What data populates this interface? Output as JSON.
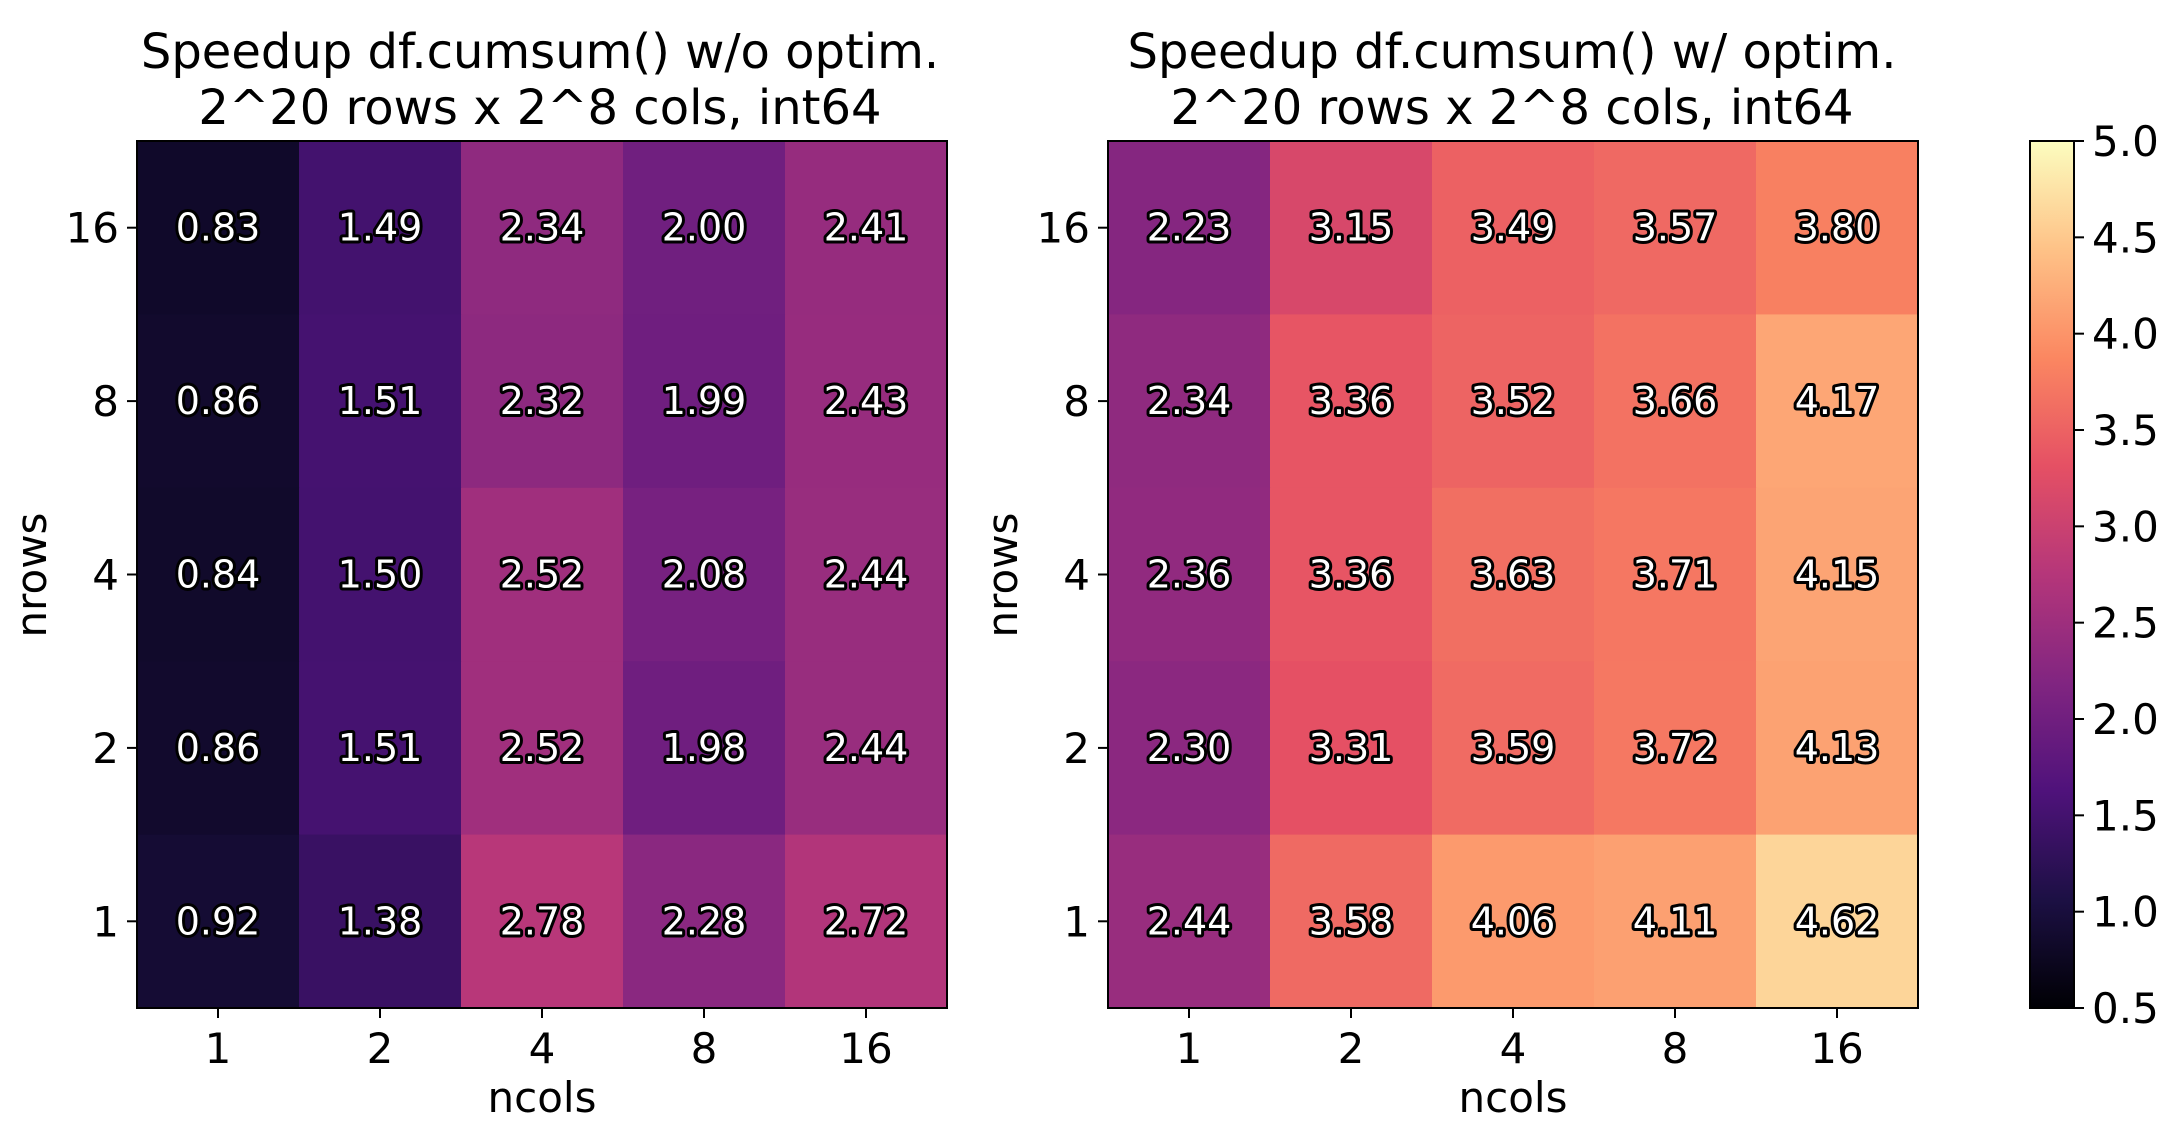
{
  "chart_data": [
    {
      "type": "heatmap",
      "title": "Speedup df.cumsum() w/o optim.",
      "subtitle": "2^20 rows x 2^8 cols, int64",
      "xlabel": "ncols",
      "ylabel": "nrows",
      "x_categories": [
        "1",
        "2",
        "4",
        "8",
        "16"
      ],
      "y_categories": [
        "16",
        "8",
        "4",
        "2",
        "1"
      ],
      "values": [
        [
          0.83,
          1.49,
          2.34,
          2.0,
          2.41
        ],
        [
          0.86,
          1.51,
          2.32,
          1.99,
          2.43
        ],
        [
          0.84,
          1.5,
          2.52,
          2.08,
          2.44
        ],
        [
          0.86,
          1.51,
          2.52,
          1.98,
          2.44
        ],
        [
          0.92,
          1.38,
          2.78,
          2.28,
          2.72
        ]
      ],
      "value_labels": [
        [
          "0.83",
          "1.49",
          "2.34",
          "2.00",
          "2.41"
        ],
        [
          "0.86",
          "1.51",
          "2.32",
          "1.99",
          "2.43"
        ],
        [
          "0.84",
          "1.50",
          "2.52",
          "2.08",
          "2.44"
        ],
        [
          "0.86",
          "1.51",
          "2.52",
          "1.98",
          "2.44"
        ],
        [
          "0.92",
          "1.38",
          "2.78",
          "2.28",
          "2.72"
        ]
      ]
    },
    {
      "type": "heatmap",
      "title": "Speedup df.cumsum() w/ optim.",
      "subtitle": "2^20 rows x 2^8 cols, int64",
      "xlabel": "ncols",
      "ylabel": "nrows",
      "x_categories": [
        "1",
        "2",
        "4",
        "8",
        "16"
      ],
      "y_categories": [
        "16",
        "8",
        "4",
        "2",
        "1"
      ],
      "values": [
        [
          2.23,
          3.15,
          3.49,
          3.57,
          3.8
        ],
        [
          2.34,
          3.36,
          3.52,
          3.66,
          4.17
        ],
        [
          2.36,
          3.36,
          3.63,
          3.71,
          4.15
        ],
        [
          2.3,
          3.31,
          3.59,
          3.72,
          4.13
        ],
        [
          2.44,
          3.58,
          4.06,
          4.11,
          4.62
        ]
      ],
      "value_labels": [
        [
          "2.23",
          "3.15",
          "3.49",
          "3.57",
          "3.80"
        ],
        [
          "2.34",
          "3.36",
          "3.52",
          "3.66",
          "4.17"
        ],
        [
          "2.36",
          "3.36",
          "3.63",
          "3.71",
          "4.15"
        ],
        [
          "2.30",
          "3.31",
          "3.59",
          "3.72",
          "4.13"
        ],
        [
          "2.44",
          "3.58",
          "4.06",
          "4.11",
          "4.62"
        ]
      ]
    }
  ],
  "colorbar": {
    "colormap": "magma",
    "range": [
      0.5,
      5.0
    ],
    "ticks": [
      "0.5",
      "1.0",
      "1.5",
      "2.0",
      "2.5",
      "3.0",
      "3.5",
      "4.0",
      "4.5",
      "5.0"
    ]
  }
}
